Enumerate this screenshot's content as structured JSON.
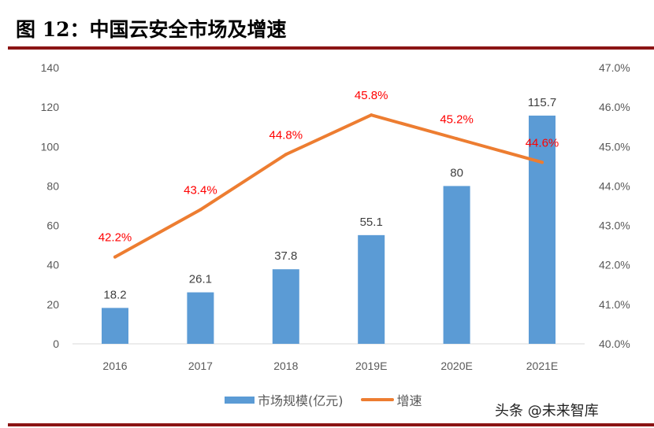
{
  "title": "图 12：中国云安全市场及增速",
  "watermark": "头条 @未来智库",
  "chart_data": {
    "type": "bar+line",
    "categories": [
      "2016",
      "2017",
      "2018",
      "2019E",
      "2020E",
      "2021E"
    ],
    "series": [
      {
        "name": "市场规模(亿元)",
        "type": "bar",
        "axis": "left",
        "color": "#5b9bd5",
        "values": [
          18.2,
          26.1,
          37.8,
          55.1,
          80,
          115.7
        ],
        "labels": [
          "18.2",
          "26.1",
          "37.8",
          "55.1",
          "80",
          "115.7"
        ]
      },
      {
        "name": "增速",
        "type": "line",
        "axis": "right",
        "color": "#ed7d31",
        "values": [
          42.2,
          43.4,
          44.8,
          45.8,
          45.2,
          44.6
        ],
        "labels": [
          "42.2%",
          "43.4%",
          "44.8%",
          "45.8%",
          "45.2%",
          "44.6%"
        ]
      }
    ],
    "ylim": [
      0,
      140
    ],
    "y_ticks": [
      "0",
      "20",
      "40",
      "60",
      "80",
      "100",
      "120",
      "140"
    ],
    "y2lim": [
      40,
      47
    ],
    "y2_ticks": [
      "40.0%",
      "41.0%",
      "42.0%",
      "43.0%",
      "44.0%",
      "45.0%",
      "46.0%",
      "47.0%"
    ],
    "label_color": "#ff0000",
    "grid": false,
    "legend": "bottom"
  }
}
